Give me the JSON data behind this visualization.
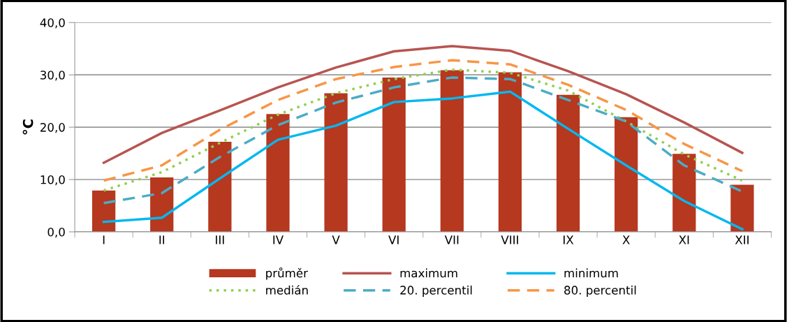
{
  "chart_data": {
    "type": "bar",
    "ylabel": "°C",
    "categories": [
      "I",
      "II",
      "III",
      "IV",
      "V",
      "VI",
      "VII",
      "VIII",
      "IX",
      "X",
      "XI",
      "XII"
    ],
    "series": [
      {
        "name": "průměr",
        "color": "#b5381f",
        "values": [
          7.9,
          10.4,
          17.2,
          22.5,
          26.5,
          29.5,
          30.9,
          30.5,
          26.2,
          21.9,
          14.9,
          9.0
        ]
      },
      {
        "name": "maximum",
        "type": "line",
        "color": "#b85450",
        "line_style": "solid",
        "values": [
          13.2,
          18.9,
          23.2,
          27.6,
          31.4,
          34.5,
          35.5,
          34.6,
          30.7,
          26.3,
          20.9,
          15.1
        ]
      },
      {
        "name": "minimum",
        "type": "line",
        "color": "#00b8f0",
        "line_style": "solid",
        "values": [
          1.9,
          2.7,
          10.2,
          17.6,
          20.3,
          24.8,
          25.5,
          26.8,
          19.7,
          12.7,
          5.9,
          0.5
        ]
      },
      {
        "name": "medián",
        "type": "line",
        "color": "#92d050",
        "line_style": "dotted",
        "values": [
          7.9,
          11.4,
          17.0,
          22.4,
          26.5,
          29.2,
          31.0,
          30.4,
          27.0,
          21.1,
          14.8,
          9.8
        ]
      },
      {
        "name": "20. percentil",
        "type": "line",
        "color": "#4bacc6",
        "line_style": "dashed",
        "values": [
          5.5,
          7.4,
          14.3,
          20.4,
          24.7,
          27.6,
          29.5,
          29.2,
          25.2,
          21.1,
          12.7,
          7.7
        ]
      },
      {
        "name": "80. percentil",
        "type": "line",
        "color": "#f79646",
        "line_style": "dashed",
        "values": [
          9.8,
          12.7,
          19.5,
          25.2,
          29.2,
          31.5,
          32.8,
          32.0,
          28.1,
          23.3,
          16.8,
          11.6
        ]
      }
    ],
    "ylim": [
      0,
      40
    ],
    "yticks": [
      {
        "value": 0,
        "label": "0,0"
      },
      {
        "value": 10,
        "label": "10,0"
      },
      {
        "value": 20,
        "label": "20,0"
      },
      {
        "value": 30,
        "label": "30,0"
      },
      {
        "value": 40,
        "label": "40,0"
      }
    ],
    "grid": "y",
    "legend": "bottom"
  }
}
